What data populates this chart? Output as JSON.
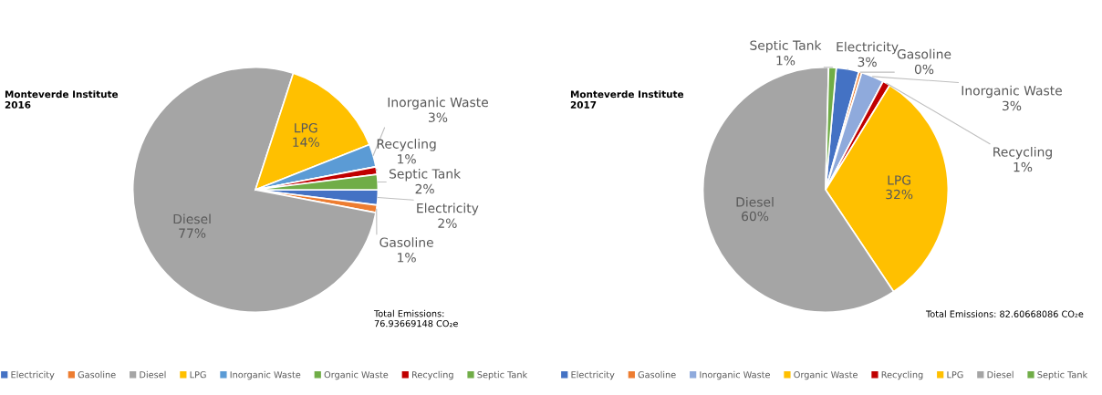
{
  "chart_data": [
    {
      "type": "pie",
      "title": "Monteverde Institute 2016",
      "categories": [
        "Electricity",
        "Gasoline",
        "Diesel",
        "LPG",
        "Inorganic Waste",
        "Organic Waste",
        "Recycling",
        "Septic Tank"
      ],
      "values": [
        2,
        1,
        77,
        14,
        3,
        0,
        1,
        2
      ],
      "colors": [
        "#4472c4",
        "#ed7d31",
        "#a5a5a5",
        "#ffc000",
        "#5b9bd5",
        "#70ad47",
        "#c00000",
        "#70ad47"
      ],
      "value_labels": [
        "2%",
        "1%",
        "77%",
        "14%",
        "3%",
        null,
        "1%",
        "2%"
      ],
      "annotations": [
        "Total Emissions: 76.93669148 CO₂e"
      ],
      "legend": "bottom"
    },
    {
      "type": "pie",
      "title": "Monteverde Institute 2017",
      "categories": [
        "Electricity",
        "Gasoline",
        "Inorganic Waste",
        "Organic Waste",
        "Recycling",
        "LPG",
        "Diesel",
        "Septic Tank"
      ],
      "values": [
        3,
        0.4,
        3,
        0,
        1,
        32,
        60,
        1
      ],
      "colors": [
        "#4472c4",
        "#ed7d31",
        "#8faadc",
        "#ffc000",
        "#c00000",
        "#ffc000",
        "#a5a5a5",
        "#70ad47"
      ],
      "value_labels": [
        "3%",
        "0%",
        "3%",
        null,
        "1%",
        "32%",
        "60%",
        "1%"
      ],
      "annotations": [
        "Total Emissions: 82.60668086 CO₂e"
      ],
      "legend": "bottom"
    }
  ]
}
